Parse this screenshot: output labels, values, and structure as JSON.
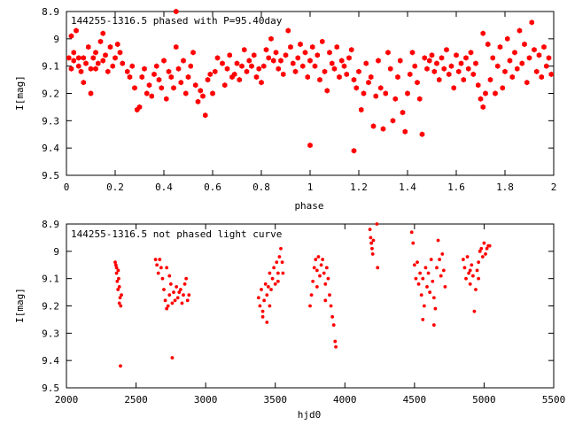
{
  "chart_data": [
    {
      "type": "scatter",
      "title": "144255-1316.5 phased with P=95.40day",
      "xlabel": "phase",
      "ylabel": "I[mag]",
      "xlim": [
        0,
        2
      ],
      "ylim": [
        8.9,
        9.5
      ],
      "y_inverted": true,
      "grid": false,
      "marker": "filled-hexagon",
      "color": "#ff0000",
      "x_ticks": [
        "0",
        "0.2",
        "0.4",
        "0.6",
        "0.8",
        "1",
        "1.2",
        "1.4",
        "1.6",
        "1.8",
        "2"
      ],
      "y_ticks": [
        "8.9",
        "9",
        "9.1",
        "9.2",
        "9.3",
        "9.4",
        "9.5"
      ],
      "points": [
        [
          0.01,
          9.07
        ],
        [
          0.02,
          9.11
        ],
        [
          0.02,
          8.99
        ],
        [
          0.03,
          9.08
        ],
        [
          0.03,
          9.05
        ],
        [
          0.04,
          8.97
        ],
        [
          0.05,
          9.1
        ],
        [
          0.05,
          9.07
        ],
        [
          0.06,
          9.12
        ],
        [
          0.07,
          9.16
        ],
        [
          0.07,
          9.07
        ],
        [
          0.08,
          9.09
        ],
        [
          0.09,
          9.03
        ],
        [
          0.1,
          9.11
        ],
        [
          0.1,
          9.2
        ],
        [
          0.11,
          9.07
        ],
        [
          0.12,
          9.05
        ],
        [
          0.12,
          9.11
        ],
        [
          0.13,
          9.09
        ],
        [
          0.14,
          9.01
        ],
        [
          0.15,
          8.98
        ],
        [
          0.15,
          9.08
        ],
        [
          0.16,
          9.06
        ],
        [
          0.17,
          9.12
        ],
        [
          0.18,
          9.03
        ],
        [
          0.19,
          9.1
        ],
        [
          0.2,
          9.07
        ],
        [
          0.21,
          9.02
        ],
        [
          0.22,
          9.05
        ],
        [
          0.23,
          9.09
        ],
        [
          0.25,
          9.12
        ],
        [
          0.26,
          9.14
        ],
        [
          0.27,
          9.1
        ],
        [
          0.28,
          9.18
        ],
        [
          0.29,
          9.26
        ],
        [
          0.3,
          9.25
        ],
        [
          0.31,
          9.14
        ],
        [
          0.32,
          9.11
        ],
        [
          0.33,
          9.2
        ],
        [
          0.34,
          9.17
        ],
        [
          0.35,
          9.21
        ],
        [
          0.36,
          9.13
        ],
        [
          0.37,
          9.1
        ],
        [
          0.38,
          9.15
        ],
        [
          0.39,
          9.18
        ],
        [
          0.4,
          9.08
        ],
        [
          0.41,
          9.22
        ],
        [
          0.42,
          9.12
        ],
        [
          0.43,
          9.14
        ],
        [
          0.44,
          9.18
        ],
        [
          0.45,
          8.9
        ],
        [
          0.45,
          9.03
        ],
        [
          0.46,
          9.11
        ],
        [
          0.47,
          9.16
        ],
        [
          0.48,
          9.08
        ],
        [
          0.49,
          9.2
        ],
        [
          0.5,
          9.14
        ],
        [
          0.51,
          9.1
        ],
        [
          0.52,
          9.05
        ],
        [
          0.53,
          9.17
        ],
        [
          0.54,
          9.23
        ],
        [
          0.55,
          9.19
        ],
        [
          0.56,
          9.21
        ],
        [
          0.57,
          9.28
        ],
        [
          0.58,
          9.15
        ],
        [
          0.59,
          9.13
        ],
        [
          0.6,
          9.2
        ],
        [
          0.61,
          9.12
        ],
        [
          0.62,
          9.07
        ],
        [
          0.64,
          9.09
        ],
        [
          0.65,
          9.17
        ],
        [
          0.66,
          9.11
        ],
        [
          0.67,
          9.06
        ],
        [
          0.68,
          9.14
        ],
        [
          0.69,
          9.13
        ],
        [
          0.7,
          9.09
        ],
        [
          0.71,
          9.15
        ],
        [
          0.72,
          9.1
        ],
        [
          0.73,
          9.04
        ],
        [
          0.74,
          9.12
        ],
        [
          0.75,
          9.08
        ],
        [
          0.76,
          9.1
        ],
        [
          0.77,
          9.06
        ],
        [
          0.78,
          9.14
        ],
        [
          0.79,
          9.11
        ],
        [
          0.8,
          9.16
        ],
        [
          0.81,
          9.1
        ],
        [
          0.82,
          9.04
        ],
        [
          0.83,
          9.07
        ],
        [
          0.84,
          9.0
        ],
        [
          0.85,
          9.08
        ],
        [
          0.86,
          9.05
        ],
        [
          0.87,
          9.11
        ],
        [
          0.88,
          9.08
        ],
        [
          0.89,
          9.13
        ],
        [
          0.9,
          9.06
        ],
        [
          0.91,
          8.97
        ],
        [
          0.92,
          9.03
        ],
        [
          0.93,
          9.09
        ],
        [
          0.94,
          9.12
        ],
        [
          0.95,
          9.07
        ],
        [
          0.96,
          9.02
        ],
        [
          0.97,
          9.1
        ],
        [
          0.98,
          9.05
        ],
        [
          0.99,
          9.14
        ],
        [
          1.0,
          9.39
        ],
        [
          1.0,
          9.08
        ],
        [
          1.01,
          9.03
        ],
        [
          1.02,
          9.1
        ],
        [
          1.03,
          9.06
        ],
        [
          1.04,
          9.15
        ],
        [
          1.05,
          9.01
        ],
        [
          1.06,
          9.12
        ],
        [
          1.07,
          9.19
        ],
        [
          1.08,
          9.05
        ],
        [
          1.09,
          9.09
        ],
        [
          1.1,
          9.11
        ],
        [
          1.11,
          9.03
        ],
        [
          1.12,
          9.14
        ],
        [
          1.13,
          9.08
        ],
        [
          1.14,
          9.1
        ],
        [
          1.15,
          9.13
        ],
        [
          1.16,
          9.07
        ],
        [
          1.17,
          9.04
        ],
        [
          1.18,
          9.15
        ],
        [
          1.18,
          9.41
        ],
        [
          1.19,
          9.18
        ],
        [
          1.2,
          9.12
        ],
        [
          1.21,
          9.26
        ],
        [
          1.22,
          9.2
        ],
        [
          1.23,
          9.09
        ],
        [
          1.24,
          9.16
        ],
        [
          1.25,
          9.14
        ],
        [
          1.26,
          9.32
        ],
        [
          1.27,
          9.21
        ],
        [
          1.28,
          9.08
        ],
        [
          1.29,
          9.18
        ],
        [
          1.3,
          9.33
        ],
        [
          1.31,
          9.2
        ],
        [
          1.32,
          9.05
        ],
        [
          1.33,
          9.11
        ],
        [
          1.34,
          9.3
        ],
        [
          1.35,
          9.22
        ],
        [
          1.36,
          9.14
        ],
        [
          1.37,
          9.08
        ],
        [
          1.38,
          9.27
        ],
        [
          1.39,
          9.34
        ],
        [
          1.4,
          9.2
        ],
        [
          1.41,
          9.13
        ],
        [
          1.42,
          9.05
        ],
        [
          1.43,
          9.1
        ],
        [
          1.44,
          9.16
        ],
        [
          1.45,
          9.22
        ],
        [
          1.46,
          9.35
        ],
        [
          1.47,
          9.07
        ],
        [
          1.48,
          9.11
        ],
        [
          1.49,
          9.08
        ],
        [
          1.5,
          9.06
        ],
        [
          1.51,
          9.12
        ],
        [
          1.52,
          9.09
        ],
        [
          1.53,
          9.15
        ],
        [
          1.54,
          9.07
        ],
        [
          1.55,
          9.11
        ],
        [
          1.56,
          9.04
        ],
        [
          1.57,
          9.13
        ],
        [
          1.58,
          9.1
        ],
        [
          1.59,
          9.18
        ],
        [
          1.6,
          9.06
        ],
        [
          1.61,
          9.12
        ],
        [
          1.62,
          9.09
        ],
        [
          1.63,
          9.15
        ],
        [
          1.64,
          9.07
        ],
        [
          1.65,
          9.11
        ],
        [
          1.66,
          9.05
        ],
        [
          1.67,
          9.13
        ],
        [
          1.68,
          9.09
        ],
        [
          1.69,
          9.17
        ],
        [
          1.7,
          9.22
        ],
        [
          1.71,
          9.25
        ],
        [
          1.71,
          8.98
        ],
        [
          1.72,
          9.2
        ],
        [
          1.73,
          9.02
        ],
        [
          1.74,
          9.15
        ],
        [
          1.75,
          9.07
        ],
        [
          1.76,
          9.2
        ],
        [
          1.77,
          9.1
        ],
        [
          1.78,
          9.03
        ],
        [
          1.79,
          9.18
        ],
        [
          1.8,
          9.12
        ],
        [
          1.81,
          9.0
        ],
        [
          1.82,
          9.08
        ],
        [
          1.83,
          9.14
        ],
        [
          1.84,
          9.05
        ],
        [
          1.85,
          9.11
        ],
        [
          1.86,
          8.97
        ],
        [
          1.87,
          9.09
        ],
        [
          1.88,
          9.02
        ],
        [
          1.89,
          9.16
        ],
        [
          1.9,
          9.07
        ],
        [
          1.91,
          8.94
        ],
        [
          1.92,
          9.04
        ],
        [
          1.93,
          9.12
        ],
        [
          1.94,
          9.06
        ],
        [
          1.95,
          9.14
        ],
        [
          1.96,
          9.03
        ],
        [
          1.97,
          9.1
        ],
        [
          1.98,
          9.07
        ],
        [
          1.99,
          9.13
        ]
      ]
    },
    {
      "type": "scatter",
      "title": "144255-1316.5 not phased light curve",
      "xlabel": "hjd0",
      "ylabel": "I[mag]",
      "xlim": [
        2000,
        5500
      ],
      "ylim": [
        8.9,
        9.5
      ],
      "y_inverted": true,
      "grid": false,
      "marker": "small-filled-circle",
      "color": "#ff0000",
      "x_ticks": [
        "2000",
        "2500",
        "3000",
        "3500",
        "4000",
        "4500",
        "5000",
        "5500"
      ],
      "y_ticks": [
        "8.9",
        "9",
        "9.1",
        "9.2",
        "9.3",
        "9.4",
        "9.5"
      ],
      "points": [
        [
          2350,
          9.04
        ],
        [
          2355,
          9.05
        ],
        [
          2360,
          9.08
        ],
        [
          2365,
          9.11
        ],
        [
          2370,
          9.14
        ],
        [
          2375,
          9.1
        ],
        [
          2380,
          9.13
        ],
        [
          2385,
          9.17
        ],
        [
          2390,
          9.2
        ],
        [
          2395,
          9.16
        ],
        [
          2388,
          9.42
        ],
        [
          2360,
          9.06
        ],
        [
          2372,
          9.07
        ],
        [
          2380,
          9.19
        ],
        [
          2640,
          9.03
        ],
        [
          2650,
          9.05
        ],
        [
          2660,
          9.08
        ],
        [
          2670,
          9.03
        ],
        [
          2680,
          9.06
        ],
        [
          2690,
          9.1
        ],
        [
          2700,
          9.14
        ],
        [
          2710,
          9.18
        ],
        [
          2720,
          9.21
        ],
        [
          2730,
          9.2
        ],
        [
          2740,
          9.16
        ],
        [
          2750,
          9.12
        ],
        [
          2760,
          9.19
        ],
        [
          2770,
          9.15
        ],
        [
          2780,
          9.18
        ],
        [
          2790,
          9.13
        ],
        [
          2800,
          9.17
        ],
        [
          2810,
          9.15
        ],
        [
          2820,
          9.14
        ],
        [
          2830,
          9.19
        ],
        [
          2840,
          9.16
        ],
        [
          2850,
          9.12
        ],
        [
          2860,
          9.1
        ],
        [
          2870,
          9.18
        ],
        [
          2880,
          9.16
        ],
        [
          2760,
          9.39
        ],
        [
          2720,
          9.06
        ],
        [
          2740,
          9.09
        ],
        [
          3380,
          9.17
        ],
        [
          3390,
          9.2
        ],
        [
          3400,
          9.14
        ],
        [
          3410,
          9.22
        ],
        [
          3420,
          9.18
        ],
        [
          3430,
          9.12
        ],
        [
          3440,
          9.16
        ],
        [
          3450,
          9.13
        ],
        [
          3460,
          9.08
        ],
        [
          3470,
          9.14
        ],
        [
          3480,
          9.1
        ],
        [
          3490,
          9.06
        ],
        [
          3500,
          9.12
        ],
        [
          3510,
          9.04
        ],
        [
          3520,
          9.08
        ],
        [
          3530,
          9.02
        ],
        [
          3540,
          8.99
        ],
        [
          3550,
          9.04
        ],
        [
          3555,
          9.08
        ],
        [
          3440,
          9.26
        ],
        [
          3410,
          9.24
        ],
        [
          3460,
          9.2
        ],
        [
          3520,
          9.11
        ],
        [
          3750,
          9.2
        ],
        [
          3760,
          9.16
        ],
        [
          3770,
          9.11
        ],
        [
          3780,
          9.06
        ],
        [
          3790,
          9.03
        ],
        [
          3800,
          9.07
        ],
        [
          3810,
          9.02
        ],
        [
          3820,
          9.09
        ],
        [
          3830,
          9.05
        ],
        [
          3840,
          9.03
        ],
        [
          3850,
          9.08
        ],
        [
          3860,
          9.12
        ],
        [
          3870,
          9.06
        ],
        [
          3880,
          9.1
        ],
        [
          3890,
          9.16
        ],
        [
          3900,
          9.2
        ],
        [
          3910,
          9.24
        ],
        [
          3920,
          9.27
        ],
        [
          3930,
          9.33
        ],
        [
          3935,
          9.35
        ],
        [
          3800,
          9.13
        ],
        [
          3860,
          9.18
        ],
        [
          4180,
          8.92
        ],
        [
          4185,
          8.95
        ],
        [
          4190,
          8.97
        ],
        [
          4195,
          8.99
        ],
        [
          4200,
          9.01
        ],
        [
          4205,
          8.96
        ],
        [
          4230,
          8.9
        ],
        [
          4235,
          9.06
        ],
        [
          4480,
          8.93
        ],
        [
          4490,
          8.97
        ],
        [
          4500,
          9.05
        ],
        [
          4510,
          9.1
        ],
        [
          4520,
          9.04
        ],
        [
          4530,
          9.12
        ],
        [
          4540,
          9.08
        ],
        [
          4550,
          9.16
        ],
        [
          4560,
          9.1
        ],
        [
          4570,
          9.2
        ],
        [
          4580,
          9.06
        ],
        [
          4590,
          9.13
        ],
        [
          4600,
          9.08
        ],
        [
          4610,
          9.15
        ],
        [
          4620,
          9.03
        ],
        [
          4630,
          9.11
        ],
        [
          4640,
          9.17
        ],
        [
          4650,
          9.21
        ],
        [
          4660,
          9.06
        ],
        [
          4670,
          8.96
        ],
        [
          4680,
          9.03
        ],
        [
          4690,
          9.09
        ],
        [
          4700,
          9.01
        ],
        [
          4710,
          9.07
        ],
        [
          4720,
          9.13
        ],
        [
          4560,
          9.25
        ],
        [
          4640,
          9.27
        ],
        [
          4850,
          9.03
        ],
        [
          4860,
          9.06
        ],
        [
          4870,
          9.1
        ],
        [
          4880,
          9.02
        ],
        [
          4890,
          9.08
        ],
        [
          4900,
          9.12
        ],
        [
          4910,
          9.05
        ],
        [
          4920,
          9.09
        ],
        [
          4930,
          9.22
        ],
        [
          4940,
          9.14
        ],
        [
          4950,
          9.07
        ],
        [
          4960,
          9.04
        ],
        [
          4970,
          9.0
        ],
        [
          4980,
          8.99
        ],
        [
          4990,
          9.02
        ],
        [
          5000,
          8.97
        ],
        [
          5010,
          9.01
        ],
        [
          5020,
          8.99
        ],
        [
          5030,
          8.98
        ],
        [
          5040,
          8.98
        ],
        [
          4900,
          9.07
        ],
        [
          4960,
          9.1
        ]
      ]
    }
  ]
}
